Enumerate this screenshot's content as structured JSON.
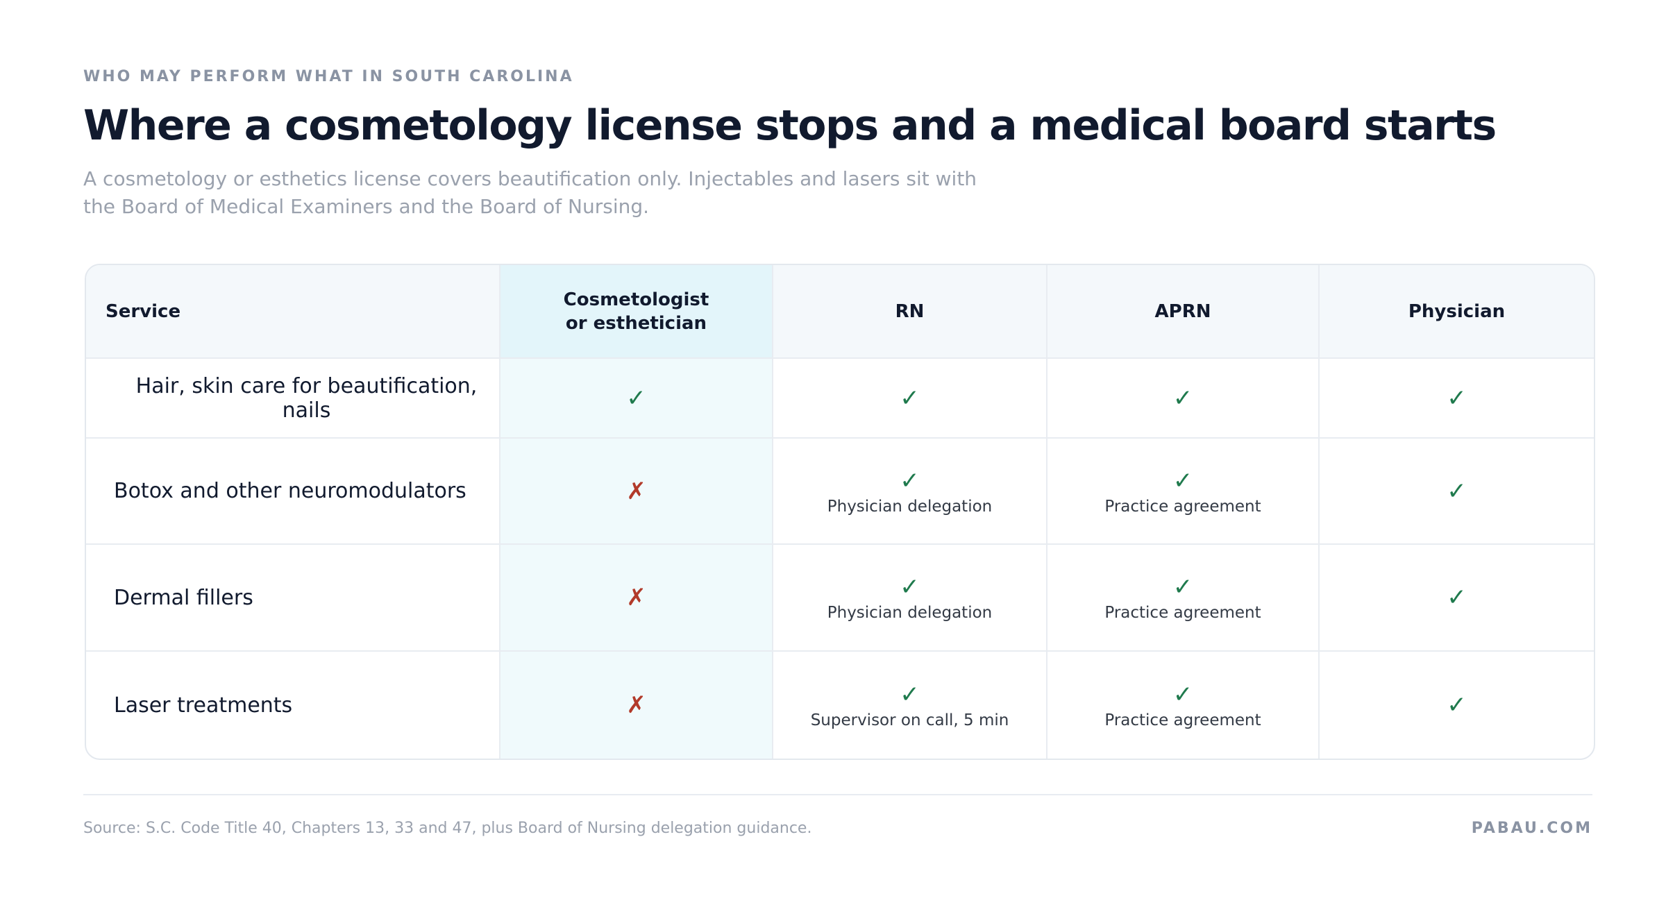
{
  "header": {
    "eyebrow": "WHO MAY PERFORM WHAT IN SOUTH CAROLINA",
    "title": "Where a cosmetology license stops and a medical board starts",
    "subtitle": "A cosmetology or esthetics license covers beautification only. Injectables and lasers sit with the Board of Medical Examiners and the Board of Nursing."
  },
  "table": {
    "columns": [
      "Service",
      "Cosmetologist or esthetician",
      "RN",
      "APRN",
      "Physician"
    ],
    "rows": [
      {
        "service": "Hair, skin care for beautification, nails",
        "cells": [
          {
            "mark": "✓"
          },
          {
            "mark": "✓"
          },
          {
            "mark": "✓"
          },
          {
            "mark": "✓"
          }
        ]
      },
      {
        "service": "Botox and other neuromodulators",
        "cells": [
          {
            "mark": "✗"
          },
          {
            "mark": "✓",
            "note": "Physician delegation"
          },
          {
            "mark": "✓",
            "note": "Practice agreement"
          },
          {
            "mark": "✓"
          }
        ]
      },
      {
        "service": "Dermal fillers",
        "cells": [
          {
            "mark": "✗"
          },
          {
            "mark": "✓",
            "note": "Physician delegation"
          },
          {
            "mark": "✓",
            "note": "Practice agreement"
          },
          {
            "mark": "✓"
          }
        ]
      },
      {
        "service": "Laser treatments",
        "cells": [
          {
            "mark": "✗"
          },
          {
            "mark": "✓",
            "note": "Supervisor on call, 5 min"
          },
          {
            "mark": "✓",
            "note": "Practice agreement"
          },
          {
            "mark": "✓"
          }
        ]
      }
    ]
  },
  "footer": {
    "source": "Source: S.C. Code Title 40, Chapters 13, 33 and 47, plus Board of Nursing delegation guidance.",
    "brand": "PABAU.COM"
  }
}
